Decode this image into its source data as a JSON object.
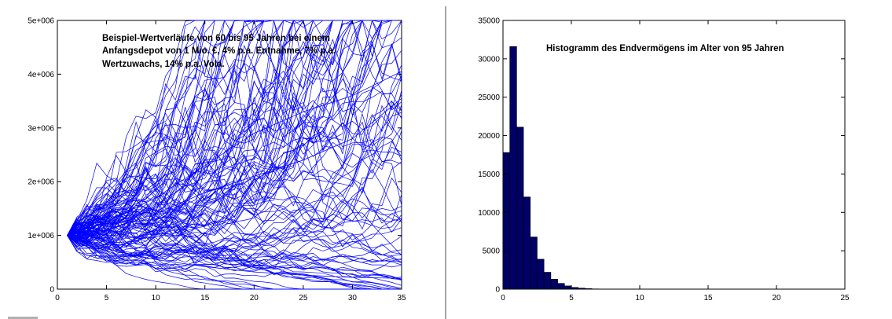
{
  "chart_data": [
    {
      "type": "line",
      "title": "",
      "xlabel": "",
      "ylabel": "",
      "xlim": [
        0,
        35
      ],
      "ylim": [
        0,
        5000000
      ],
      "x_ticks": [
        "0",
        "5",
        "10",
        "15",
        "20",
        "25",
        "30",
        "35"
      ],
      "y_ticks": [
        "0",
        "1e+006",
        "2e+006",
        "3e+006",
        "4e+006",
        "5e+006"
      ],
      "annotation": [
        "Beispiel-Wertverläufe von 60 bis 95 Jahren bei einem",
        "Anfangsdepot von 1 Mio. €, 4% p.a. Entnahme, 7% p.a.",
        "Wertzuwachs, 14% p.a. Vola."
      ],
      "line_color": "#0000ff",
      "simulation": {
        "paths": 120,
        "start_year": 1,
        "end_year": 35,
        "start_value": 1000000,
        "withdrawal_rate": 0.04,
        "growth_rate": 0.07,
        "volatility": 0.14
      },
      "highlighted_series": [
        {
          "x": [
            1,
            5,
            10,
            15,
            20,
            25,
            30,
            35
          ],
          "y": [
            1000000,
            1250000,
            1700000,
            2300000,
            2900000,
            3300000,
            3600000,
            4050000
          ]
        },
        {
          "x": [
            1,
            5,
            10,
            15,
            20,
            25,
            30,
            35
          ],
          "y": [
            1000000,
            1100000,
            1400000,
            1800000,
            2100000,
            2400000,
            2800000,
            3550000
          ]
        },
        {
          "x": [
            1,
            5,
            10,
            15,
            20,
            25,
            30,
            35
          ],
          "y": [
            1000000,
            750000,
            550000,
            420000,
            320000,
            260000,
            220000,
            200000
          ]
        }
      ]
    },
    {
      "type": "bar",
      "title": "",
      "xlabel": "",
      "ylabel": "",
      "xlim": [
        0,
        25
      ],
      "ylim": [
        0,
        35000
      ],
      "x_ticks": [
        "0",
        "5",
        "10",
        "15",
        "20",
        "25"
      ],
      "y_ticks": [
        "0",
        "5000",
        "10000",
        "15000",
        "20000",
        "25000",
        "30000",
        "35000"
      ],
      "annotation": [
        "Histogramm des Endvermögens im Alter von 95 Jahren"
      ],
      "bar_color": "#000066",
      "bin_width": 0.5,
      "bin_start": 0,
      "values": [
        17800,
        31600,
        21100,
        12000,
        6800,
        3900,
        2200,
        1300,
        750,
        420,
        230,
        130,
        70,
        35,
        15,
        5
      ]
    }
  ]
}
